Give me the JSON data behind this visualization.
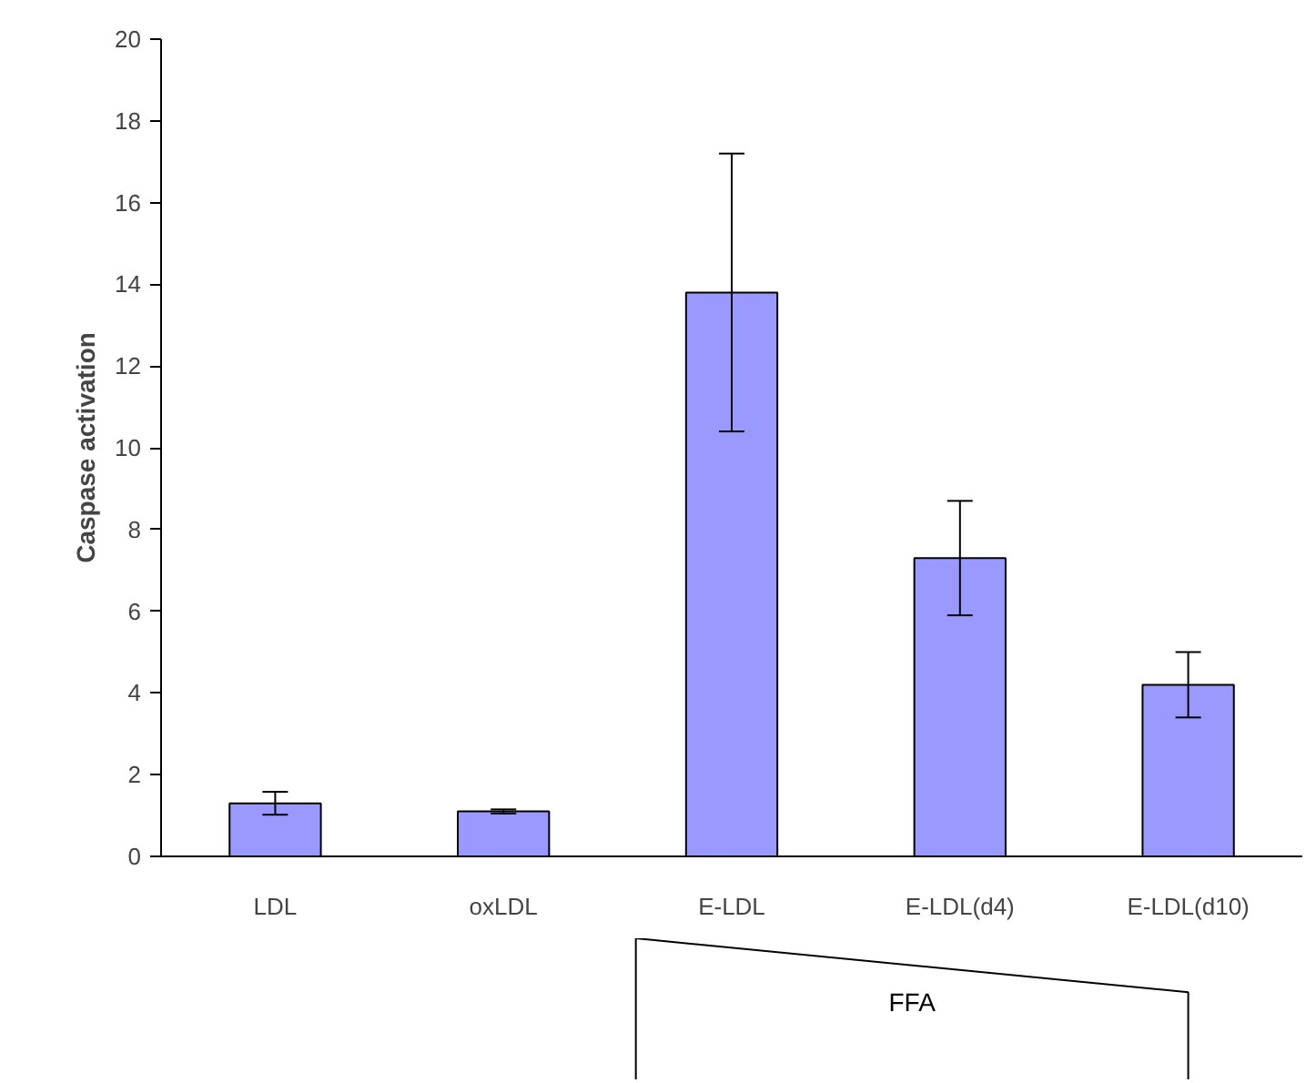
{
  "chart_data": {
    "type": "bar",
    "ylabel": "Caspase activation",
    "categories": [
      "LDL",
      "oxLDL",
      "E-LDL",
      "E-LDL(d4)",
      "E-LDL(d10)"
    ],
    "values": [
      1.3,
      1.1,
      13.8,
      7.3,
      4.2
    ],
    "errors": [
      0.28,
      0.05,
      3.4,
      1.4,
      0.8
    ],
    "color": "#9999ff",
    "ylim": [
      0,
      20
    ],
    "yticks": [
      0,
      2,
      4,
      6,
      8,
      10,
      12,
      14,
      16,
      18,
      20
    ],
    "grid": false,
    "annotations": [
      "FFA"
    ]
  }
}
